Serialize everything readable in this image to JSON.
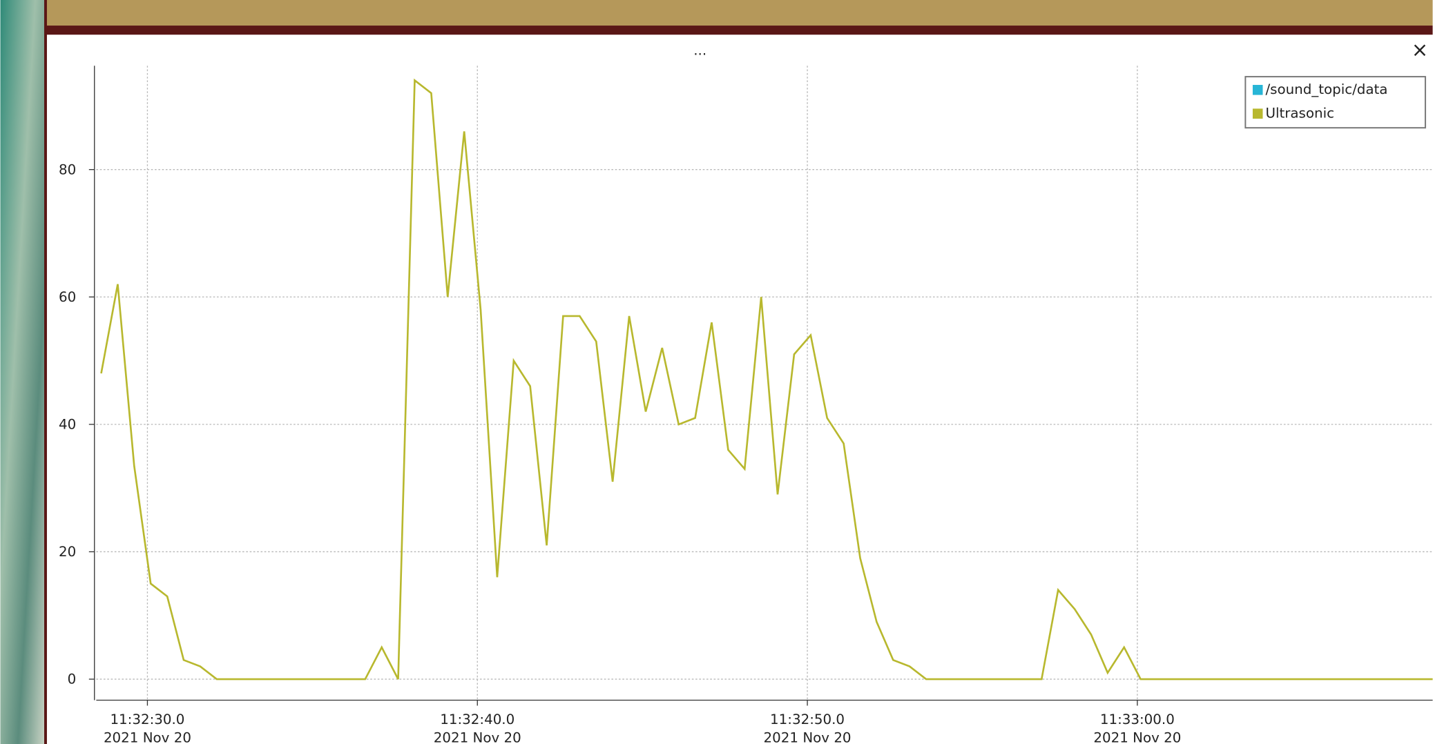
{
  "window": {
    "close": "×"
  },
  "chart_data": {
    "type": "line",
    "title": "...",
    "xlim": [
      28.45,
      68.95
    ],
    "ylim": [
      -3.3,
      96.3
    ],
    "xticks": [
      {
        "value": 30,
        "label": "11:32:30.0\n2021 Nov 20"
      },
      {
        "value": 40,
        "label": "11:32:40.0\n2021 Nov 20"
      },
      {
        "value": 50,
        "label": "11:32:50.0\n2021 Nov 20"
      },
      {
        "value": 60,
        "label": "11:33:00.0\n2021 Nov 20"
      }
    ],
    "yticks": [
      0,
      20,
      40,
      60,
      80
    ],
    "grid": true,
    "legend": "upper right",
    "series": [
      {
        "name": "/sound_topic/data",
        "color": "#27b5d6",
        "x": [],
        "values": []
      },
      {
        "name": "Ultrasonic",
        "color": "#b8b82e",
        "x": [
          28.6,
          29.1,
          29.6,
          30.1,
          30.6,
          31.1,
          31.6,
          32.1,
          36.6,
          37.1,
          37.6,
          38.1,
          38.6,
          39.1,
          39.6,
          40.1,
          40.6,
          41.1,
          41.6,
          42.1,
          42.6,
          43.1,
          43.6,
          44.1,
          44.6,
          45.1,
          45.6,
          46.1,
          46.6,
          47.1,
          47.6,
          48.1,
          48.6,
          49.1,
          49.6,
          50.1,
          50.6,
          51.1,
          51.6,
          52.1,
          52.6,
          53.1,
          53.6,
          57.1,
          57.6,
          58.1,
          58.6,
          59.1,
          59.6,
          60.1,
          68.95
        ],
        "values": [
          48,
          62,
          33.5,
          15,
          13,
          3,
          2,
          0,
          0,
          5,
          0,
          94,
          92,
          60,
          86,
          58,
          16,
          50,
          46,
          21,
          57,
          57,
          53,
          31,
          57,
          42,
          52,
          40,
          41,
          56,
          36,
          33,
          60,
          29,
          51,
          54,
          41,
          37,
          19,
          9,
          3,
          2,
          0,
          0,
          14,
          11,
          7,
          1,
          5,
          0,
          0
        ]
      }
    ]
  }
}
